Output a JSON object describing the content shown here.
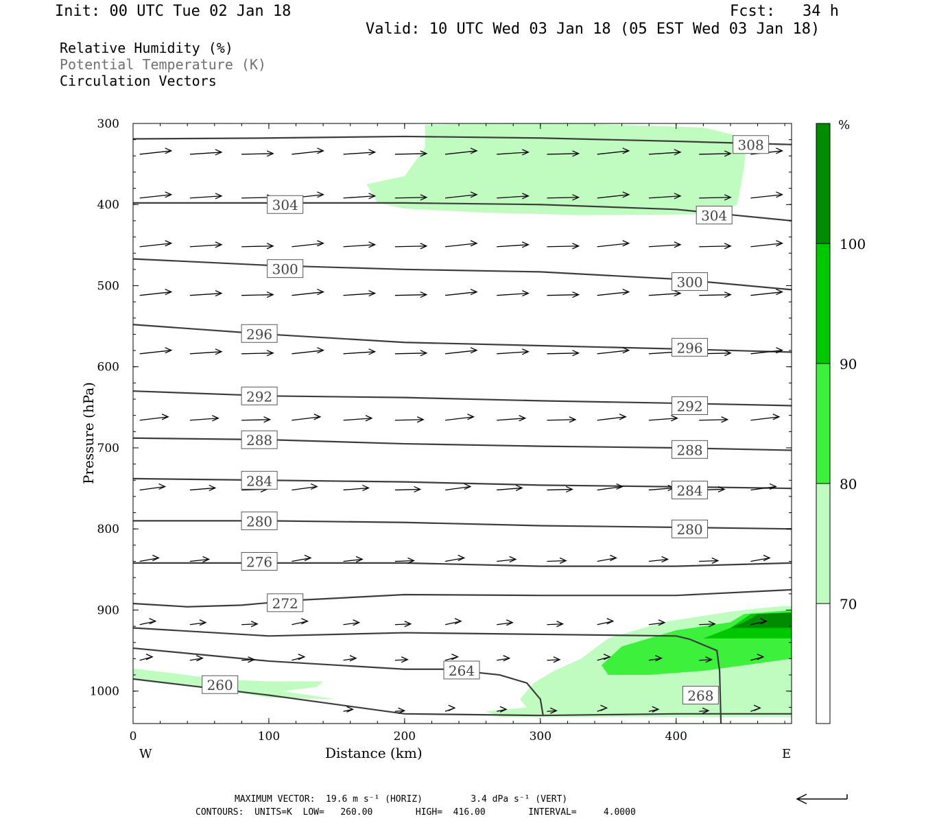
{
  "header": {
    "init": "Init: 00 UTC Tue 02 Jan 18",
    "fcst": "Fcst:   34 h",
    "valid": "Valid: 10 UTC Wed 03 Jan 18 (05 EST Wed 03 Jan 18)"
  },
  "legend": {
    "rh": "Relative Humidity (%)",
    "theta": "Potential Temperature (K)",
    "vectors": "Circulation Vectors"
  },
  "footer": {
    "max_vector": "MAXIMUM VECTOR:  19.6 m s⁻¹ (HORIZ)         3.4 dPa s⁻¹ (VERT)",
    "contours": "CONTOURS:  UNITS=K  LOW=   260.00        HIGH=  416.00        INTERVAL=     4.0000"
  },
  "colors": {
    "rh_70": "#c0fcc0",
    "rh_80": "#3cf03c",
    "rh_90": "#00c800",
    "rh_100": "#008c00",
    "contour": "#3c3c3c"
  },
  "chart_data": {
    "type": "cross-section",
    "xlabel": "Distance (km)",
    "ylabel": "Pressure (hPa)",
    "xlim": [
      0,
      485
    ],
    "ylim": [
      300,
      1040
    ],
    "y_scale": "linear, inverted",
    "x_ticks": [
      0,
      100,
      200,
      300,
      400
    ],
    "y_ticks": [
      300,
      400,
      500,
      600,
      700,
      800,
      900,
      1000
    ],
    "x_end_labels": {
      "west": "W",
      "east": "E"
    },
    "colorbar": {
      "unit": "%",
      "levels": [
        70,
        80,
        90,
        100
      ],
      "labels": [
        "70",
        "80",
        "90",
        "100"
      ],
      "colors": [
        "#ffffff",
        "#c0fcc0",
        "#3cf03c",
        "#00c800",
        "#008c00"
      ]
    },
    "theta_contours": [
      {
        "value": 308,
        "points": [
          [
            0,
            319
          ],
          [
            100,
            318
          ],
          [
            200,
            316
          ],
          [
            300,
            318
          ],
          [
            400,
            322
          ],
          [
            485,
            326
          ]
        ],
        "labels": [
          [
            455,
            326
          ]
        ]
      },
      {
        "value": 304,
        "points": [
          [
            0,
            398
          ],
          [
            100,
            398
          ],
          [
            200,
            398
          ],
          [
            300,
            400
          ],
          [
            400,
            406
          ],
          [
            485,
            420
          ]
        ],
        "labels": [
          [
            112,
            400
          ],
          [
            428,
            413
          ]
        ]
      },
      {
        "value": 300,
        "points": [
          [
            0,
            467
          ],
          [
            100,
            475
          ],
          [
            200,
            480
          ],
          [
            300,
            483
          ],
          [
            400,
            492
          ],
          [
            485,
            505
          ]
        ],
        "labels": [
          [
            112,
            479
          ],
          [
            410,
            495
          ]
        ]
      },
      {
        "value": 296,
        "points": [
          [
            0,
            548
          ],
          [
            100,
            560
          ],
          [
            200,
            570
          ],
          [
            300,
            574
          ],
          [
            400,
            578
          ],
          [
            485,
            582
          ]
        ],
        "labels": [
          [
            93,
            559
          ],
          [
            410,
            576
          ]
        ]
      },
      {
        "value": 292,
        "points": [
          [
            0,
            630
          ],
          [
            100,
            636
          ],
          [
            200,
            638
          ],
          [
            300,
            642
          ],
          [
            400,
            645
          ],
          [
            485,
            648
          ]
        ],
        "labels": [
          [
            93,
            636
          ],
          [
            410,
            648
          ]
        ]
      },
      {
        "value": 288,
        "points": [
          [
            0,
            688
          ],
          [
            100,
            690
          ],
          [
            200,
            695
          ],
          [
            300,
            698
          ],
          [
            400,
            700
          ],
          [
            485,
            703
          ]
        ],
        "labels": [
          [
            93,
            690
          ],
          [
            410,
            702
          ]
        ]
      },
      {
        "value": 284,
        "points": [
          [
            0,
            738
          ],
          [
            100,
            740
          ],
          [
            200,
            742
          ],
          [
            300,
            746
          ],
          [
            400,
            748
          ],
          [
            485,
            750
          ]
        ],
        "labels": [
          [
            93,
            740
          ],
          [
            410,
            752
          ]
        ]
      },
      {
        "value": 280,
        "points": [
          [
            0,
            790
          ],
          [
            100,
            790
          ],
          [
            200,
            792
          ],
          [
            300,
            796
          ],
          [
            400,
            798
          ],
          [
            485,
            800
          ]
        ],
        "labels": [
          [
            93,
            790
          ],
          [
            410,
            800
          ]
        ]
      },
      {
        "value": 276,
        "points": [
          [
            0,
            842
          ],
          [
            100,
            842
          ],
          [
            200,
            842
          ],
          [
            300,
            846
          ],
          [
            400,
            846
          ],
          [
            485,
            842
          ]
        ],
        "labels": [
          [
            93,
            840
          ]
        ]
      },
      {
        "value": 272,
        "points": [
          [
            0,
            892
          ],
          [
            40,
            896
          ],
          [
            80,
            894
          ],
          [
            120,
            888
          ],
          [
            200,
            881
          ],
          [
            300,
            882
          ],
          [
            400,
            882
          ],
          [
            485,
            875
          ]
        ],
        "labels": [
          [
            112,
            891
          ]
        ]
      },
      {
        "value": 268,
        "points": [
          [
            0,
            922
          ],
          [
            100,
            932
          ],
          [
            200,
            928
          ],
          [
            300,
            930
          ],
          [
            400,
            932
          ],
          [
            410,
            936
          ],
          [
            430,
            950
          ],
          [
            432,
            975
          ],
          [
            433,
            1040
          ]
        ],
        "labels": [
          [
            418,
            1005
          ]
        ]
      },
      {
        "value": 264,
        "points": [
          [
            0,
            947
          ],
          [
            100,
            963
          ],
          [
            200,
            973
          ],
          [
            230,
            973
          ],
          [
            270,
            980
          ],
          [
            290,
            990
          ],
          [
            300,
            1010
          ],
          [
            302,
            1030
          ]
        ],
        "labels": [
          [
            242,
            974
          ]
        ]
      },
      {
        "value": 260,
        "points": [
          [
            0,
            985
          ],
          [
            100,
            1005
          ],
          [
            200,
            1028
          ],
          [
            300,
            1030
          ],
          [
            400,
            1028
          ],
          [
            485,
            1028
          ]
        ],
        "labels": [
          [
            64,
            992
          ]
        ]
      }
    ],
    "circulation_vectors": {
      "note": "Mostly westerly flow; arrows at each pressure row, vertical shown on W-E section",
      "rows": [
        {
          "p": 338,
          "u": 1.0
        },
        {
          "p": 392,
          "u": 1.0
        },
        {
          "p": 452,
          "u": 1.0
        },
        {
          "p": 512,
          "u": 1.0
        },
        {
          "p": 584,
          "u": 1.0
        },
        {
          "p": 666,
          "u": 0.9
        },
        {
          "p": 752,
          "u": 0.8
        },
        {
          "p": 840,
          "u": 0.6
        },
        {
          "p": 918,
          "u": 0.5
        },
        {
          "p": 962,
          "u": 0.4
        },
        {
          "p": 1025,
          "u": 0.3
        }
      ]
    },
    "rh_regions": [
      {
        "level": 70,
        "points": [
          [
            215,
            302
          ],
          [
            250,
            300
          ],
          [
            330,
            300
          ],
          [
            420,
            305
          ],
          [
            452,
            318
          ],
          [
            450,
            355
          ],
          [
            445,
            400
          ],
          [
            430,
            412
          ],
          [
            330,
            413
          ],
          [
            260,
            410
          ],
          [
            200,
            405
          ],
          [
            180,
            398
          ],
          [
            172,
            375
          ],
          [
            200,
            365
          ],
          [
            215,
            330
          ]
        ]
      },
      {
        "level": 70,
        "points": [
          [
            0,
            972
          ],
          [
            30,
            978
          ],
          [
            60,
            985
          ],
          [
            100,
            988
          ],
          [
            140,
            988
          ],
          [
            135,
            995
          ],
          [
            110,
            1000
          ],
          [
            150,
            1010
          ],
          [
            100,
            1008
          ],
          [
            40,
            992
          ],
          [
            0,
            985
          ]
        ]
      },
      {
        "level": 70,
        "points": [
          [
            480,
            895
          ],
          [
            460,
            898
          ],
          [
            440,
            902
          ],
          [
            390,
            915
          ],
          [
            350,
            935
          ],
          [
            330,
            960
          ],
          [
            310,
            975
          ],
          [
            295,
            990
          ],
          [
            285,
            1010
          ],
          [
            290,
            1020
          ],
          [
            260,
            1025
          ],
          [
            270,
            1032
          ],
          [
            485,
            1032
          ],
          [
            485,
            895
          ]
        ]
      },
      {
        "level": 80,
        "points": [
          [
            485,
            900
          ],
          [
            450,
            905
          ],
          [
            440,
            915
          ],
          [
            400,
            925
          ],
          [
            360,
            945
          ],
          [
            345,
            968
          ],
          [
            350,
            980
          ],
          [
            380,
            980
          ],
          [
            420,
            975
          ],
          [
            485,
            960
          ]
        ]
      },
      {
        "level": 90,
        "points": [
          [
            485,
            903
          ],
          [
            455,
            905
          ],
          [
            440,
            922
          ],
          [
            420,
            935
          ],
          [
            485,
            935
          ]
        ]
      },
      {
        "level": 100,
        "points": [
          [
            485,
            903
          ],
          [
            460,
            905
          ],
          [
            450,
            915
          ],
          [
            440,
            922
          ],
          [
            485,
            922
          ]
        ]
      }
    ]
  }
}
